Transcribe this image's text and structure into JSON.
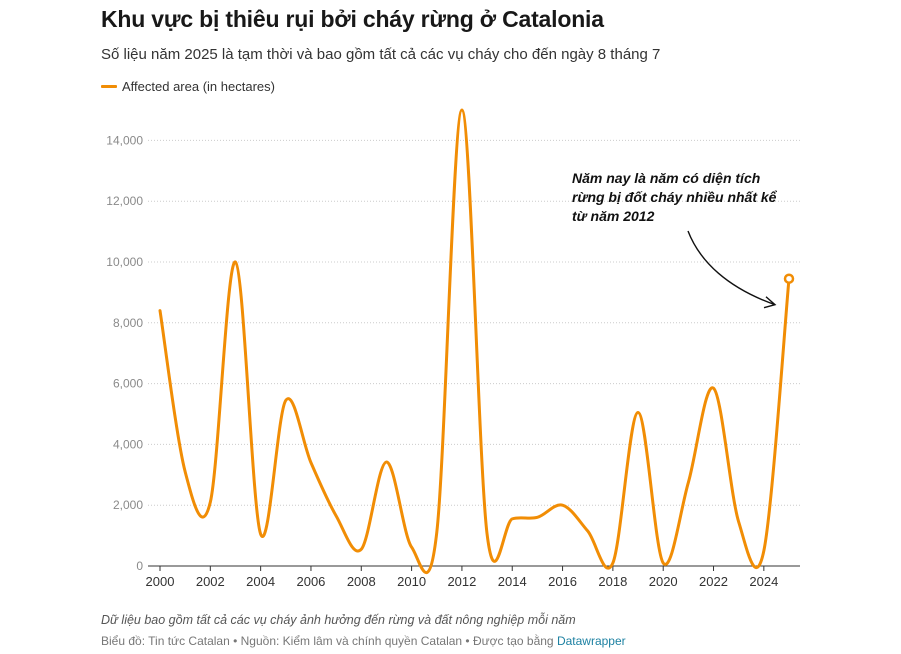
{
  "colors": {
    "line": "#f18d05",
    "axis": "#333333",
    "grid": "#e5e5e5"
  },
  "legend": {
    "label": "Affected area (in hectares)"
  },
  "footer": {
    "notes": "Dữ liệu bao gồm tất cả các vụ cháy ảnh hưởng đến rừng và đất nông nghiệp mỗi năm",
    "byline": "Biểu đồ: Tin tức Catalan • Nguồn: Kiểm lâm và chính quyền Catalan • Được tạo bằng",
    "byline_link": "Datawrapper"
  },
  "chart_data": {
    "type": "line",
    "title": "Khu vực bị thiêu rụi bởi cháy rừng ở Catalonia",
    "subtitle": "Số liệu năm 2025 là tạm thời và bao gồm tất cả các vụ cháy cho đến ngày 8 tháng 7",
    "xlabel": "",
    "ylabel": "",
    "x": [
      2000,
      2001,
      2002,
      2003,
      2004,
      2005,
      2006,
      2007,
      2008,
      2009,
      2010,
      2011,
      2012,
      2013,
      2014,
      2015,
      2016,
      2017,
      2018,
      2019,
      2020,
      2021,
      2022,
      2023,
      2024,
      2025
    ],
    "series": [
      {
        "name": "Affected area (in hectares)",
        "values": [
          8400,
          3100,
          2100,
          10000,
          1050,
          5450,
          3400,
          1650,
          550,
          3420,
          620,
          1100,
          15000,
          1050,
          1550,
          1600,
          2000,
          1150,
          100,
          5050,
          100,
          2750,
          5850,
          1450,
          500,
          9450
        ]
      }
    ],
    "xticks": [
      "2000",
      "2002",
      "2004",
      "2006",
      "2008",
      "2010",
      "2012",
      "2014",
      "2016",
      "2018",
      "2020",
      "2022",
      "2024"
    ],
    "yticks": [
      "0",
      "2,000",
      "4,000",
      "6,000",
      "8,000",
      "10,000",
      "12,000",
      "14,000"
    ],
    "xlim": [
      2000,
      2025
    ],
    "ylim": [
      0,
      15000
    ],
    "grid": "horizontal-dotted",
    "legend_position": "top-left",
    "annotations": [
      {
        "lines": [
          "Năm nay là năm có diện tích",
          "rừng bị đốt cháy nhiều nhất kể",
          "từ năm 2012"
        ],
        "target_x": 2025,
        "target_y": 9450
      }
    ]
  }
}
